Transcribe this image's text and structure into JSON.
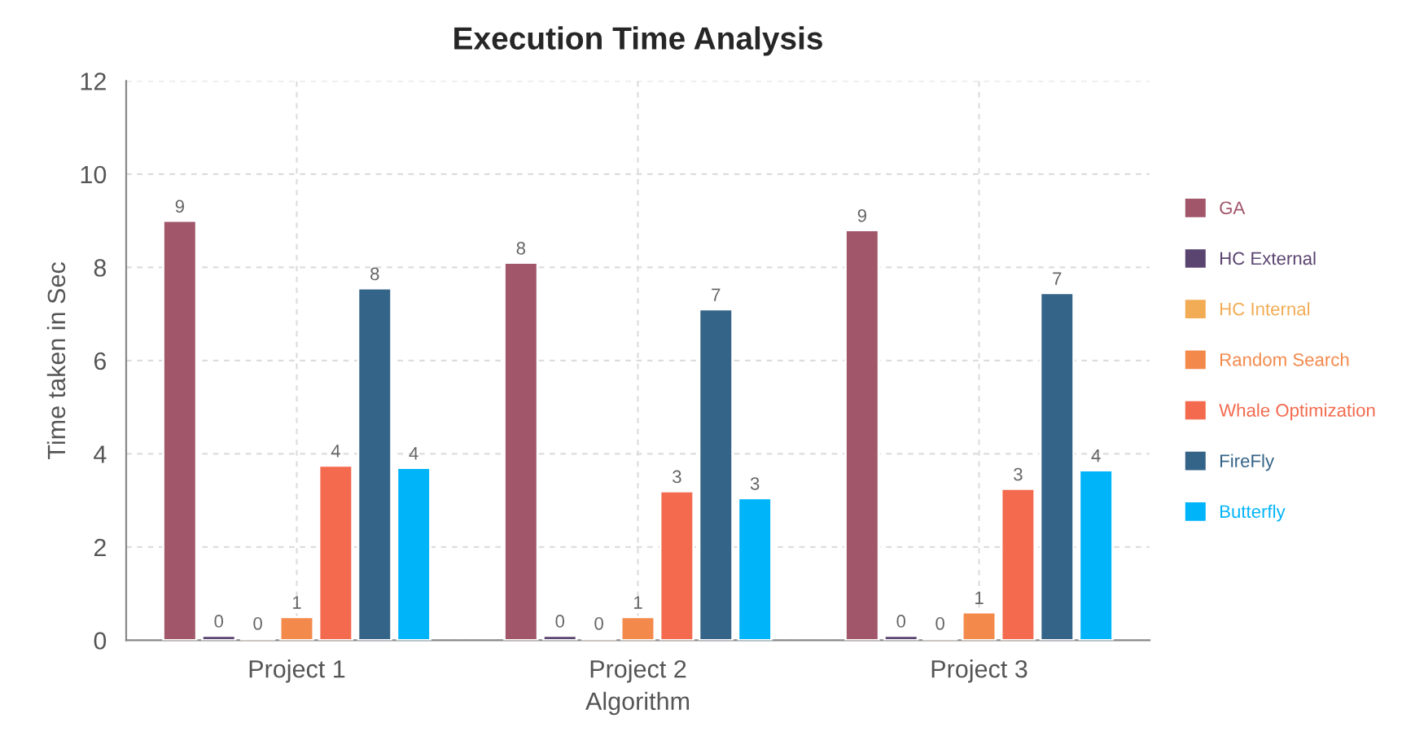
{
  "chart_data": {
    "type": "bar",
    "title": "Execution Time Analysis",
    "xlabel": "Algorithm",
    "ylabel": "Time taken in Sec",
    "categories": [
      "Project 1",
      "Project 2",
      "Project 3"
    ],
    "series": [
      {
        "name": "GA",
        "color": "#a2566a",
        "values": [
          9.0,
          8.1,
          8.8
        ],
        "value_labels": [
          "9",
          "8",
          "9"
        ]
      },
      {
        "name": "HC External",
        "color": "#5a4470",
        "values": [
          0.1,
          0.1,
          0.1
        ],
        "value_labels": [
          "0",
          "0",
          "0"
        ]
      },
      {
        "name": "HC Internal",
        "color": "#f2ac55",
        "values": [
          0.05,
          0.05,
          0.05
        ],
        "value_labels": [
          "0",
          "0",
          "0"
        ]
      },
      {
        "name": "Random Search",
        "color": "#f3894b",
        "values": [
          0.5,
          0.5,
          0.6
        ],
        "value_labels": [
          "1",
          "1",
          "1"
        ]
      },
      {
        "name": "Whale Optimization",
        "color": "#f36a4e",
        "values": [
          3.75,
          3.2,
          3.25
        ],
        "value_labels": [
          "4",
          "3",
          "3"
        ]
      },
      {
        "name": "FireFly",
        "color": "#346488",
        "values": [
          7.55,
          7.1,
          7.45
        ],
        "value_labels": [
          "8",
          "7",
          "7"
        ]
      },
      {
        "name": "Butterfly",
        "color": "#00b4fa",
        "values": [
          3.7,
          3.05,
          3.65
        ],
        "value_labels": [
          "4",
          "3",
          "4"
        ]
      }
    ],
    "ylim": [
      0,
      12
    ],
    "yticks": [
      0,
      2,
      4,
      6,
      8,
      10,
      12
    ],
    "grid": true,
    "legend": "right"
  }
}
